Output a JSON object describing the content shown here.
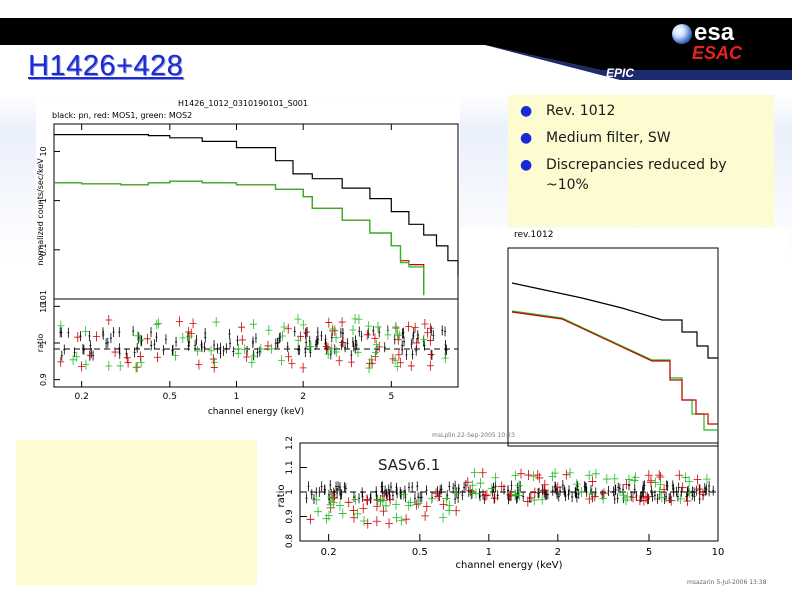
{
  "slide": {
    "title": "H1426+428",
    "epic_label": "EPIC",
    "logo": {
      "top": "esa",
      "bottom": "ESAC"
    },
    "bullets": [
      "Rev. 1012",
      "Medium filter, SW",
      "Discrepancies reduced by ~10%"
    ],
    "colors": {
      "title": "#1a2bd6",
      "banner": "#000000",
      "pn": "#000000",
      "mos1": "#cc0000",
      "mos2": "#22bb22"
    }
  },
  "plot_a": {
    "header_title": "H1426_1012_0310190101_S001",
    "header_legend": "black: pn, red: MOS1, green: MOS2",
    "top_ylabel": "normalized counts/sec/keV",
    "bottom_ylabel": "ratio",
    "xlabel": "channel energy (keV)",
    "x_ticks": [
      "0.2",
      "0.5",
      "1",
      "2",
      "5"
    ],
    "top_y_ticks": [
      "10",
      "1",
      "0.1",
      "0.01"
    ],
    "bottom_y_ticks": [
      "1.1",
      "1",
      "0.9"
    ],
    "footer": "mszlurin 22-Sep-2005 10:23"
  },
  "plot_b": {
    "header": "rev.1012",
    "annotation": "SASv6.1",
    "bottom_ylabel": "ratio",
    "xlabel": "channel energy (keV)",
    "x_ticks": [
      "0.2",
      "0.5",
      "1",
      "2",
      "5",
      "10"
    ],
    "bottom_y_ticks": [
      "1.2",
      "1.1",
      "1",
      "0.9",
      "0.8"
    ],
    "footer": "msazarin 5-Jul-2006 13:38"
  },
  "chart_data": [
    {
      "type": "line",
      "title": "H1426_1012_0310190101_S001",
      "subtitle": "black: pn, red: MOS1, green: MOS2",
      "xlabel": "channel energy (keV)",
      "ylabel": "normalized counts/sec/keV",
      "x_scale": "log",
      "y_scale": "log",
      "xlim": [
        0.15,
        10
      ],
      "ylim": [
        0.01,
        30
      ],
      "series": [
        {
          "name": "pn",
          "color": "#000000",
          "x": [
            0.15,
            0.2,
            0.3,
            0.4,
            0.5,
            0.7,
            1.0,
            1.5,
            1.8,
            2.2,
            3.0,
            4.0,
            5.0,
            6.0,
            7.0,
            8.0,
            9.0,
            10.0
          ],
          "y": [
            22,
            22,
            22,
            21,
            19,
            16,
            12,
            6.5,
            3.5,
            2.8,
            1.8,
            1.1,
            0.6,
            0.33,
            0.2,
            0.12,
            0.06,
            0.03
          ]
        },
        {
          "name": "MOS1",
          "color": "#cc0000",
          "x": [
            0.15,
            0.2,
            0.3,
            0.4,
            0.5,
            0.7,
            1.0,
            1.5,
            2.0,
            2.2,
            3.0,
            4.0,
            5.0,
            5.5,
            6.0,
            7.0
          ],
          "y": [
            2.3,
            2.2,
            2.1,
            2.3,
            2.5,
            2.3,
            2.1,
            1.7,
            1.2,
            0.7,
            0.4,
            0.22,
            0.12,
            0.06,
            0.05,
            0.012
          ]
        },
        {
          "name": "MOS2",
          "color": "#22bb22",
          "x": [
            0.15,
            0.2,
            0.3,
            0.4,
            0.5,
            0.7,
            1.0,
            1.5,
            2.0,
            2.2,
            3.0,
            4.0,
            5.0,
            5.5,
            6.0,
            7.0
          ],
          "y": [
            2.3,
            2.2,
            2.1,
            2.3,
            2.5,
            2.3,
            2.1,
            1.7,
            1.2,
            0.7,
            0.4,
            0.22,
            0.12,
            0.055,
            0.045,
            0.012
          ]
        }
      ]
    },
    {
      "type": "scatter",
      "xlabel": "channel energy (keV)",
      "ylabel": "ratio",
      "x_scale": "log",
      "xlim": [
        0.15,
        10
      ],
      "ylim": [
        0.88,
        1.12
      ],
      "reference_line": 1
    },
    {
      "type": "line",
      "title": "rev.1012",
      "x_scale": "log",
      "y_scale": "log",
      "xlim": [
        0.15,
        10
      ],
      "series": [
        {
          "name": "pn",
          "color": "#000000"
        },
        {
          "name": "MOS1",
          "color": "#cc0000"
        },
        {
          "name": "MOS2",
          "color": "#22bb22"
        }
      ]
    },
    {
      "type": "scatter",
      "annotation": "SASv6.1",
      "xlabel": "channel energy (keV)",
      "ylabel": "ratio",
      "x_scale": "log",
      "xlim": [
        0.15,
        10
      ],
      "ylim": [
        0.8,
        1.2
      ],
      "reference_line": 1
    }
  ]
}
